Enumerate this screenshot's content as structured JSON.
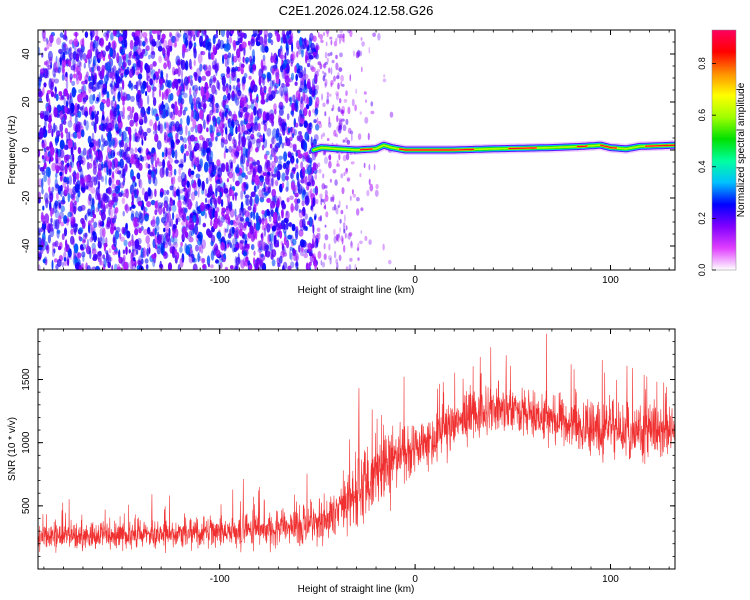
{
  "page_title": "C2E1.2026.024.12.58.G26",
  "chart_data": [
    {
      "id": "spectrogram",
      "type": "heatmap",
      "title": "C2E1.2026.024.12.58.G26",
      "xlabel": "Height of straight line (km)",
      "ylabel": "Frequency (Hz)",
      "xlim": [
        -193,
        133
      ],
      "ylim": [
        -50,
        50
      ],
      "x_ticks": [
        -100,
        0,
        100
      ],
      "x_tick_labels": [
        "-100",
        "0",
        "100"
      ],
      "y_ticks": [
        -40,
        -20,
        0,
        20,
        40
      ],
      "y_tick_labels": [
        "-40",
        "-20",
        "0",
        "20",
        "40"
      ],
      "colorbar": {
        "label": "Normalized spectral amplitude",
        "range": [
          0,
          0.93
        ],
        "ticks": [
          0.0,
          0.2,
          0.4,
          0.6,
          0.8
        ],
        "tick_labels": [
          "0.0",
          "0.2",
          "0.4",
          "0.6",
          "0.8"
        ],
        "colors": [
          "#ffffff",
          "#e040ff",
          "#8000ff",
          "#0000ff",
          "#00c0ff",
          "#00ffa0",
          "#00e000",
          "#a0ff00",
          "#ffff00",
          "#ff9000",
          "#ff0000",
          "#ff0060"
        ]
      },
      "noise_region_x": [
        -193,
        -52
      ],
      "signal_band": {
        "x_start": -52,
        "x_end": 133,
        "center_hz": [
          [
            -52,
            0
          ],
          [
            -48,
            1
          ],
          [
            -40,
            0.5
          ],
          [
            -30,
            0
          ],
          [
            -20,
            0.5
          ],
          [
            -16,
            2
          ],
          [
            -12,
            1
          ],
          [
            -5,
            0
          ],
          [
            20,
            0
          ],
          [
            40,
            0.5
          ],
          [
            70,
            1
          ],
          [
            85,
            1.5
          ],
          [
            95,
            2
          ],
          [
            100,
            1
          ],
          [
            108,
            0.5
          ],
          [
            115,
            1.5
          ],
          [
            133,
            2
          ]
        ],
        "peak_regions_x": [
          [
            -28,
            -22
          ],
          [
            -8,
            30
          ],
          [
            48,
            62
          ],
          [
            83,
            88
          ],
          [
            95,
            103
          ],
          [
            118,
            133
          ]
        ]
      }
    },
    {
      "id": "snr",
      "type": "line",
      "xlabel": "Height of straight line (km)",
      "ylabel": "SNR (10 * v/v)",
      "xlim": [
        -193,
        133
      ],
      "ylim": [
        0,
        1900
      ],
      "x_ticks": [
        -100,
        0,
        100
      ],
      "x_tick_labels": [
        "-100",
        "0",
        "100"
      ],
      "y_ticks": [
        500,
        1000,
        1500
      ],
      "y_tick_labels": [
        "500",
        "1000",
        "1500"
      ],
      "color": "#f03030",
      "trend": {
        "x": [
          -193,
          -150,
          -100,
          -60,
          -45,
          -35,
          -20,
          0,
          20,
          40,
          60,
          80,
          100,
          133
        ],
        "mean": [
          250,
          270,
          300,
          330,
          380,
          520,
          780,
          950,
          1180,
          1270,
          1220,
          1150,
          1100,
          1100
        ],
        "spread": [
          130,
          140,
          160,
          180,
          230,
          320,
          330,
          300,
          280,
          260,
          250,
          250,
          260,
          280
        ]
      }
    }
  ]
}
